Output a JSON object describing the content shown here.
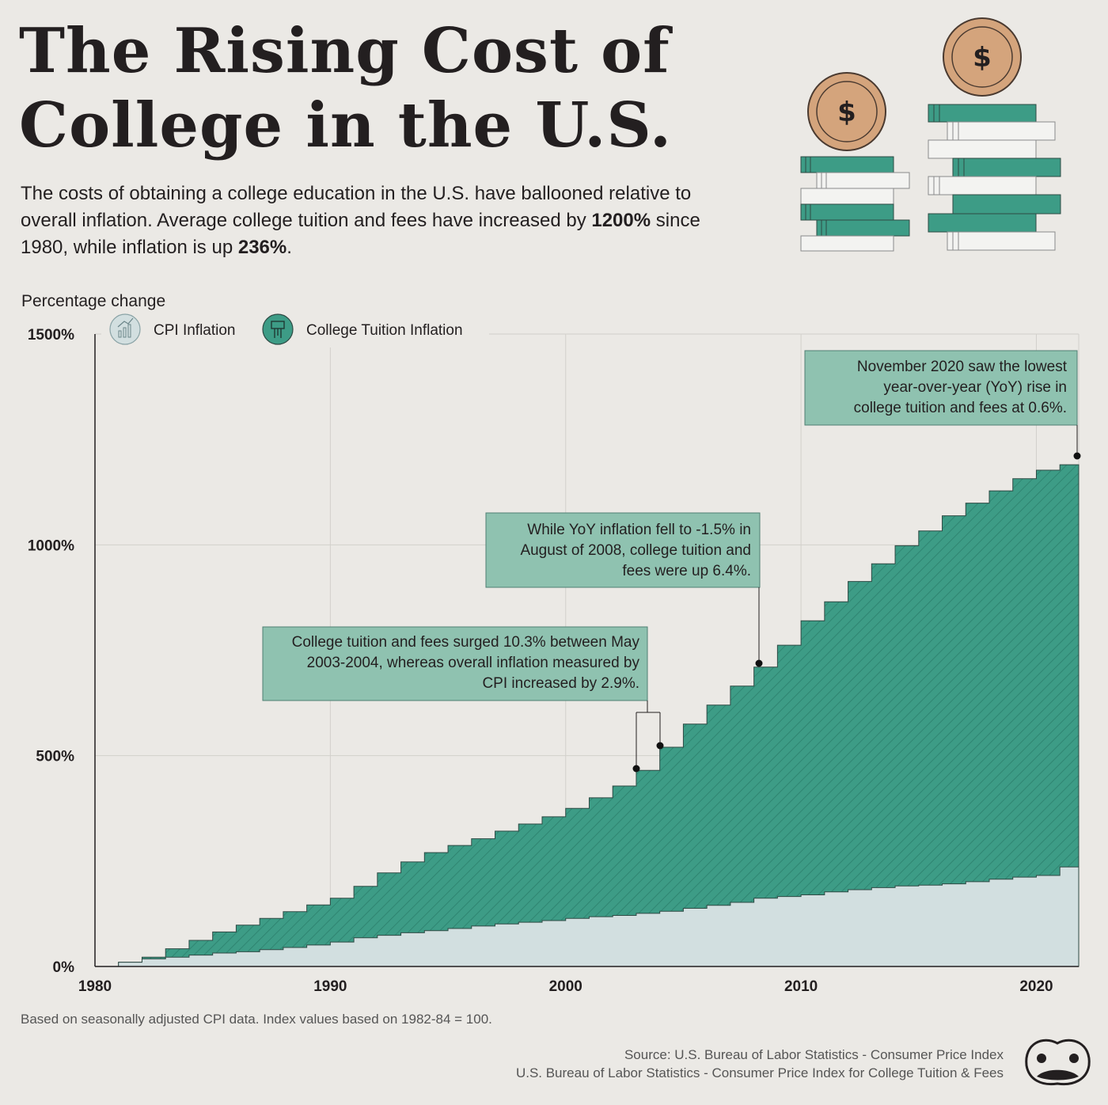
{
  "header": {
    "title_line1": "The Rising Cost of",
    "title_line2": "College in the U.S.",
    "subtitle_part1": "The costs of obtaining a college education in the U.S. have ballooned relative to overall inflation. Average college tuition and fees have increased by ",
    "subtitle_bold1": "1200%",
    "subtitle_part2": " since 1980, while inflation is up ",
    "subtitle_bold2": "236%",
    "subtitle_part3": "."
  },
  "icons": {
    "coin_symbol": "$",
    "illustration": "coin-on-book-stacks"
  },
  "colors": {
    "background": "#ebe9e5",
    "tuition": "#3d9c86",
    "tuition_dark": "#2c7f6c",
    "cpi": "#d2dfe0",
    "annotation_fill": "#8fc2b0",
    "coin": "#d4a47c"
  },
  "chart_data": {
    "type": "area",
    "ylabel": "Percentage change",
    "ylim": [
      0,
      1500
    ],
    "xlim": [
      1980,
      2021.8
    ],
    "yticks": [
      0,
      500,
      1000,
      1500
    ],
    "ytick_labels": [
      "0%",
      "500%",
      "1000%",
      "1500%"
    ],
    "xticks": [
      1980,
      1990,
      2000,
      2010,
      2020
    ],
    "grid": true,
    "legend_position": "top-left",
    "series": [
      {
        "name": "CPI Inflation",
        "step": true,
        "x": [
          1980,
          1981,
          1982,
          1983,
          1984,
          1985,
          1986,
          1987,
          1988,
          1989,
          1990,
          1991,
          1992,
          1993,
          1994,
          1995,
          1996,
          1997,
          1998,
          1999,
          2000,
          2001,
          2002,
          2003,
          2004,
          2005,
          2006,
          2007,
          2008,
          2009,
          2010,
          2011,
          2012,
          2013,
          2014,
          2015,
          2016,
          2017,
          2018,
          2019,
          2020,
          2021,
          2021.8
        ],
        "values": [
          0,
          10,
          18,
          22,
          27,
          32,
          35,
          40,
          45,
          51,
          58,
          68,
          74,
          80,
          85,
          90,
          96,
          101,
          105,
          109,
          114,
          118,
          121,
          126,
          131,
          138,
          145,
          152,
          162,
          166,
          170,
          177,
          182,
          187,
          191,
          193,
          196,
          201,
          207,
          212,
          216,
          236,
          236
        ]
      },
      {
        "name": "College Tuition Inflation",
        "step": true,
        "x": [
          1980,
          1981,
          1982,
          1983,
          1984,
          1985,
          1986,
          1987,
          1988,
          1989,
          1990,
          1991,
          1992,
          1993,
          1994,
          1995,
          1996,
          1997,
          1998,
          1999,
          2000,
          2001,
          2002,
          2003,
          2004,
          2005,
          2006,
          2007,
          2008,
          2009,
          2010,
          2011,
          2012,
          2013,
          2014,
          2015,
          2016,
          2017,
          2018,
          2019,
          2020,
          2021,
          2021.8
        ],
        "values": [
          0,
          10,
          22,
          42,
          62,
          82,
          98,
          114,
          130,
          146,
          162,
          190,
          222,
          248,
          270,
          287,
          303,
          321,
          338,
          355,
          375,
          400,
          428,
          465,
          520,
          575,
          620,
          665,
          710,
          762,
          820,
          865,
          913,
          955,
          998,
          1033,
          1069,
          1099,
          1128,
          1157,
          1177,
          1190,
          1190
        ]
      }
    ],
    "annotations": [
      {
        "text": [
          "College tuition and fees surged 10.3% between May",
          "2003-2004, whereas overall inflation measured by",
          "CPI increased by 2.9%."
        ],
        "points": [
          [
            2003.0,
            468
          ],
          [
            2004.0,
            522
          ]
        ]
      },
      {
        "text": [
          "While YoY inflation fell to -1.5% in",
          "August of 2008, college tuition and",
          "fees were up 6.4%."
        ],
        "points": [
          [
            2008.1,
            717
          ]
        ]
      },
      {
        "text": [
          "November 2020 saw the lowest",
          "year-over-year (YoY) rise in",
          "college tuition and fees at 0.6%."
        ],
        "points": [
          [
            2021.8,
            1212
          ]
        ]
      }
    ]
  },
  "footer": {
    "note": "Based on seasonally adjusted CPI data. Index values based on 1982-84 = 100.",
    "source_line1": "Source: U.S. Bureau of Labor Statistics - Consumer Price Index",
    "source_line2": "U.S. Bureau of Labor Statistics - Consumer Price Index for College Tuition & Fees"
  }
}
